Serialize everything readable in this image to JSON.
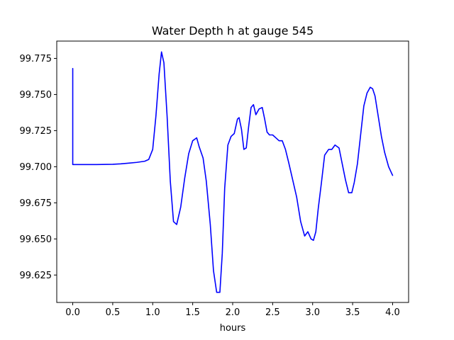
{
  "chart_data": {
    "type": "line",
    "title": "Water Depth h at gauge 545",
    "xlabel": "hours",
    "ylabel": "",
    "xlim": [
      -0.2,
      4.2
    ],
    "ylim": [
      99.606,
      99.787
    ],
    "grid": false,
    "legend": "none",
    "x_ticks": [
      0.0,
      0.5,
      1.0,
      1.5,
      2.0,
      2.5,
      3.0,
      3.5,
      4.0
    ],
    "x_tick_labels": [
      "0.0",
      "0.5",
      "1.0",
      "1.5",
      "2.0",
      "2.5",
      "3.0",
      "3.5",
      "4.0"
    ],
    "y_ticks": [
      99.625,
      99.65,
      99.675,
      99.7,
      99.725,
      99.75,
      99.775
    ],
    "y_tick_labels": [
      "99.625",
      "99.650",
      "99.675",
      "99.700",
      "99.725",
      "99.750",
      "99.775"
    ],
    "series": [
      {
        "color": "#0000ff",
        "x": [
          0.0,
          0.0,
          0.0,
          0.1,
          0.3,
          0.5,
          0.6,
          0.7,
          0.8,
          0.9,
          0.95,
          1.0,
          1.04,
          1.08,
          1.11,
          1.14,
          1.18,
          1.22,
          1.26,
          1.3,
          1.35,
          1.4,
          1.45,
          1.5,
          1.55,
          1.58,
          1.63,
          1.67,
          1.72,
          1.76,
          1.8,
          1.84,
          1.87,
          1.9,
          1.94,
          1.98,
          2.02,
          2.06,
          2.08,
          2.11,
          2.14,
          2.17,
          2.2,
          2.23,
          2.26,
          2.29,
          2.33,
          2.37,
          2.4,
          2.43,
          2.46,
          2.5,
          2.54,
          2.58,
          2.62,
          2.66,
          2.7,
          2.75,
          2.8,
          2.85,
          2.9,
          2.94,
          2.98,
          3.01,
          3.04,
          3.07,
          3.11,
          3.15,
          3.2,
          3.24,
          3.28,
          3.33,
          3.37,
          3.41,
          3.45,
          3.49,
          3.52,
          3.56,
          3.6,
          3.64,
          3.68,
          3.72,
          3.75,
          3.78,
          3.82,
          3.86,
          3.9,
          3.95,
          4.0
        ],
        "values": [
          99.768,
          99.75,
          99.7015,
          99.7015,
          99.7015,
          99.7017,
          99.702,
          99.7025,
          99.703,
          99.7038,
          99.705,
          99.712,
          99.735,
          99.764,
          99.7795,
          99.772,
          99.735,
          99.69,
          99.662,
          99.66,
          99.672,
          99.692,
          99.709,
          99.718,
          99.72,
          99.714,
          99.706,
          99.69,
          99.66,
          99.628,
          99.613,
          99.613,
          99.64,
          99.685,
          99.715,
          99.721,
          99.723,
          99.733,
          99.734,
          99.726,
          99.712,
          99.713,
          99.728,
          99.741,
          99.743,
          99.736,
          99.74,
          99.741,
          99.733,
          99.724,
          99.722,
          99.722,
          99.72,
          99.718,
          99.718,
          99.712,
          99.703,
          99.691,
          99.679,
          99.662,
          99.652,
          99.655,
          99.65,
          99.649,
          99.655,
          99.671,
          99.689,
          99.708,
          99.712,
          99.712,
          99.715,
          99.713,
          99.702,
          99.691,
          99.682,
          99.682,
          99.689,
          99.702,
          99.722,
          99.742,
          99.751,
          99.755,
          99.754,
          99.749,
          99.735,
          99.721,
          99.71,
          99.7,
          99.694
        ]
      }
    ]
  }
}
